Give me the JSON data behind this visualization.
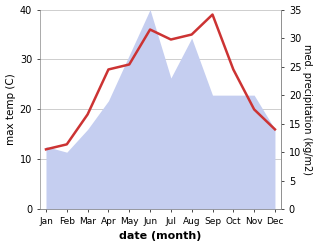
{
  "months": [
    "Jan",
    "Feb",
    "Mar",
    "Apr",
    "May",
    "Jun",
    "Jul",
    "Aug",
    "Sep",
    "Oct",
    "Nov",
    "Dec"
  ],
  "temperature": [
    12,
    13,
    19,
    28,
    29,
    36,
    34,
    35,
    39,
    28,
    20,
    16
  ],
  "precipitation": [
    11,
    10,
    14,
    19,
    27,
    35,
    23,
    30,
    20,
    20,
    20,
    14
  ],
  "temp_color": "#cc3333",
  "precip_color": "#c5cef0",
  "temp_ylim": [
    0,
    40
  ],
  "precip_ylim": [
    0,
    35
  ],
  "temp_yticks": [
    0,
    10,
    20,
    30,
    40
  ],
  "precip_yticks": [
    0,
    5,
    10,
    15,
    20,
    25,
    30,
    35
  ],
  "xlabel": "date (month)",
  "ylabel_left": "max temp (C)",
  "ylabel_right": "med. precipitation (kg/m2)",
  "bg_color": "#ffffff",
  "grid_color": "#bbbbbb",
  "line_width": 1.8,
  "figsize": [
    3.18,
    2.47
  ],
  "dpi": 100
}
